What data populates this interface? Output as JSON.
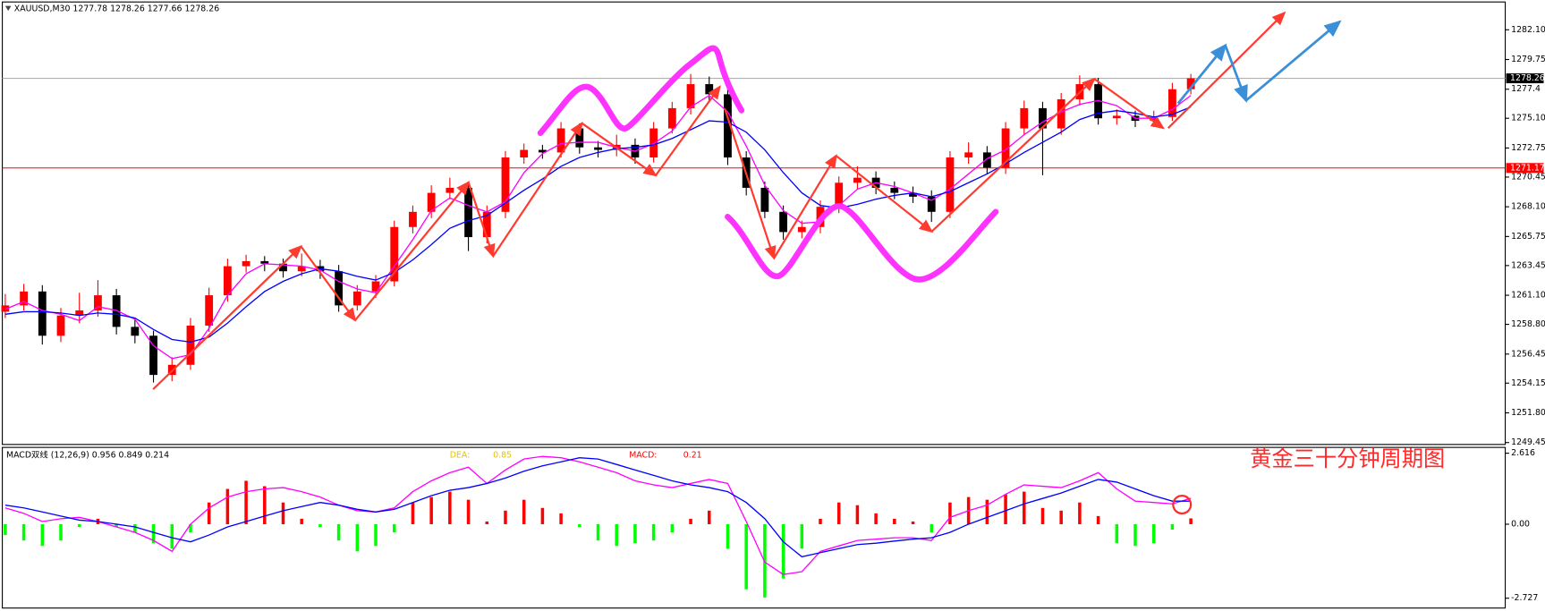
{
  "chart_data": [
    {
      "type": "candlestick",
      "title": "XAUUSD,M30  1277.78 1278.26 1277.66 1278.26",
      "up_color": "#ff0000",
      "down_color": "#000000",
      "open": [
        1259.8,
        1260.3,
        1261.4,
        1257.9,
        1259.5,
        1259.9,
        1261.1,
        1258.6,
        1257.9,
        1254.8,
        1255.6,
        1258.7,
        1261.1,
        1263.4,
        1263.8,
        1263.6,
        1263.0,
        1263.4,
        1263.0,
        1260.3,
        1261.4,
        1262.2,
        1266.5,
        1267.7,
        1269.2,
        1269.6,
        1265.7,
        1267.7,
        1272.0,
        1272.6,
        1272.4,
        1274.3,
        1272.8,
        1272.6,
        1273.0,
        1272.0,
        1274.3,
        1275.9,
        1277.8,
        1277.0,
        1272.0,
        1269.6,
        1267.7,
        1266.1,
        1266.5,
        1268.1,
        1270.0,
        1270.4,
        1269.6,
        1269.2,
        1268.9,
        1267.7,
        1272.0,
        1272.4,
        1271.2,
        1274.3,
        1275.9,
        1274.3,
        1276.6,
        1277.8,
        1275.1,
        1275.3,
        1274.9,
        1275.2,
        1277.4
      ],
      "high": [
        1261.2,
        1262.0,
        1261.9,
        1260.1,
        1261.3,
        1262.3,
        1261.6,
        1259.2,
        1258.3,
        1256.2,
        1259.3,
        1261.7,
        1264.0,
        1264.3,
        1264.2,
        1264.0,
        1264.4,
        1263.9,
        1263.5,
        1261.9,
        1262.7,
        1267.0,
        1268.2,
        1269.8,
        1270.4,
        1270.1,
        1268.2,
        1272.5,
        1273.1,
        1273.0,
        1274.8,
        1274.7,
        1273.3,
        1273.8,
        1273.5,
        1274.8,
        1276.4,
        1278.6,
        1278.4,
        1277.5,
        1272.5,
        1270.1,
        1268.2,
        1267.0,
        1268.6,
        1270.5,
        1271.3,
        1270.9,
        1270.1,
        1269.7,
        1269.4,
        1272.5,
        1273.2,
        1272.9,
        1274.8,
        1276.5,
        1276.4,
        1277.1,
        1278.5,
        1278.3,
        1275.8,
        1275.7,
        1275.7,
        1277.9,
        1278.6
      ],
      "low": [
        1259.3,
        1259.9,
        1257.2,
        1257.4,
        1258.9,
        1259.4,
        1258.0,
        1257.3,
        1254.2,
        1254.3,
        1255.2,
        1258.2,
        1260.6,
        1262.9,
        1263.0,
        1262.5,
        1262.6,
        1262.4,
        1259.8,
        1259.9,
        1260.9,
        1261.8,
        1266.0,
        1267.2,
        1268.7,
        1264.6,
        1265.2,
        1267.2,
        1271.5,
        1271.9,
        1272.0,
        1272.3,
        1272.0,
        1272.1,
        1271.5,
        1271.6,
        1273.9,
        1275.4,
        1276.5,
        1271.4,
        1269.0,
        1267.2,
        1265.5,
        1265.6,
        1266.0,
        1267.6,
        1269.5,
        1269.1,
        1268.7,
        1268.4,
        1266.9,
        1267.2,
        1271.5,
        1270.7,
        1270.7,
        1273.8,
        1270.6,
        1273.8,
        1276.1,
        1274.6,
        1274.6,
        1274.4,
        1274.4,
        1274.9,
        1277.0
      ],
      "close": [
        1260.3,
        1261.4,
        1257.9,
        1259.5,
        1259.9,
        1261.1,
        1258.6,
        1257.9,
        1254.8,
        1255.6,
        1258.7,
        1261.1,
        1263.4,
        1263.8,
        1263.6,
        1263.0,
        1263.4,
        1263.0,
        1260.3,
        1261.4,
        1262.2,
        1266.5,
        1267.7,
        1269.2,
        1269.6,
        1265.7,
        1267.7,
        1272.0,
        1272.6,
        1272.4,
        1274.3,
        1272.8,
        1272.6,
        1273.0,
        1272.0,
        1274.3,
        1275.9,
        1277.8,
        1277.0,
        1272.0,
        1269.6,
        1267.7,
        1266.1,
        1266.5,
        1268.1,
        1270.0,
        1270.4,
        1269.6,
        1269.2,
        1268.9,
        1267.7,
        1272.0,
        1272.4,
        1271.2,
        1274.3,
        1275.9,
        1274.3,
        1276.6,
        1277.8,
        1275.1,
        1275.3,
        1274.9,
        1275.2,
        1277.4,
        1278.26
      ],
      "lines": [
        {
          "color": "#ff00ff",
          "values": [
            1260.0,
            1260.6,
            1259.9,
            1259.6,
            1259.1,
            1260.2,
            1259.9,
            1259.2,
            1257.1,
            1256.1,
            1256.4,
            1258.5,
            1261.1,
            1262.8,
            1263.6,
            1263.5,
            1263.4,
            1263.1,
            1262.2,
            1261.6,
            1261.3,
            1263.4,
            1265.5,
            1267.8,
            1268.8,
            1268.2,
            1267.7,
            1268.5,
            1270.8,
            1272.3,
            1273.1,
            1273.2,
            1273.2,
            1272.8,
            1272.5,
            1273.1,
            1274.1,
            1276.0,
            1276.9,
            1275.6,
            1272.9,
            1269.8,
            1267.8,
            1266.8,
            1266.9,
            1268.2,
            1269.5,
            1270.0,
            1269.7,
            1269.2,
            1268.6,
            1269.5,
            1270.7,
            1271.9,
            1272.6,
            1273.8,
            1274.8,
            1275.6,
            1276.2,
            1276.5,
            1276.1,
            1275.1,
            1275.1,
            1275.8,
            1276.9
          ]
        },
        {
          "color": "#0000ff",
          "values": [
            1259.6,
            1259.8,
            1259.8,
            1259.7,
            1259.5,
            1259.7,
            1259.6,
            1259.3,
            1258.4,
            1257.6,
            1257.4,
            1257.8,
            1258.9,
            1260.2,
            1261.4,
            1262.2,
            1262.8,
            1263.2,
            1263.0,
            1262.6,
            1262.3,
            1262.9,
            1263.9,
            1265.1,
            1266.4,
            1267.0,
            1267.4,
            1268.4,
            1269.4,
            1270.3,
            1271.3,
            1272.0,
            1272.4,
            1272.7,
            1272.8,
            1273.0,
            1273.5,
            1274.2,
            1274.9,
            1274.8,
            1274.0,
            1272.6,
            1270.8,
            1269.2,
            1268.2,
            1268.0,
            1268.3,
            1268.7,
            1269.0,
            1269.2,
            1268.9,
            1269.3,
            1270.0,
            1270.7,
            1271.5,
            1272.4,
            1273.2,
            1274.0,
            1275.0,
            1275.5,
            1275.7,
            1275.5,
            1275.2,
            1275.4,
            1276.0
          ]
        }
      ],
      "ylim": [
        1249.3,
        1284.3
      ],
      "yticks": [
        {
          "value": 1282.1,
          "label": "1282.10"
        },
        1279.75,
        1277.4,
        {
          "value": 1275.1,
          "label": "1275.10"
        },
        1272.75,
        1270.45,
        {
          "value": 1268.1,
          "label": "1268.10"
        },
        1265.75,
        1263.45,
        {
          "value": 1261.1,
          "label": "1261.10"
        },
        {
          "value": 1258.8,
          "label": "1258.80"
        },
        1256.45,
        1254.15,
        {
          "value": 1251.8,
          "label": "1251.80"
        },
        1249.45
      ],
      "current_price": 1278.26,
      "price_line": {
        "value": 1271.17,
        "color": "#ff0000"
      }
    },
    {
      "type": "macd",
      "title": "MACD双线 (12,26,9) 0.956 0.849 0.214",
      "dea_label": "DEA:",
      "dea_value": 0.85,
      "macd_label": "MACD:",
      "macd_value": 0.21,
      "annotation": "黄金三十分钟周期图",
      "up_color": "#ff0000",
      "down_color": "#00ff00",
      "histogram": [
        -0.4,
        -0.6,
        -0.8,
        -0.6,
        -0.1,
        0.2,
        -0.1,
        -0.3,
        -0.7,
        -0.9,
        -0.3,
        0.8,
        1.3,
        1.6,
        1.4,
        0.8,
        0.2,
        -0.1,
        -0.6,
        -1.0,
        -0.8,
        -0.3,
        0.8,
        1.0,
        1.2,
        0.9,
        0.1,
        0.5,
        0.9,
        0.6,
        0.4,
        -0.1,
        -0.6,
        -0.8,
        -0.7,
        -0.6,
        -0.3,
        0.2,
        0.5,
        -0.9,
        -2.4,
        -2.7,
        -2.0,
        -0.9,
        0.2,
        0.8,
        0.7,
        0.4,
        0.2,
        0.1,
        -0.3,
        0.8,
        1.0,
        0.9,
        1.1,
        1.2,
        0.6,
        0.5,
        0.8,
        0.3,
        -0.7,
        -0.8,
        -0.7,
        -0.2,
        0.214
      ],
      "lines": [
        {
          "color": "#ff00ff",
          "values": [
            0.6,
            0.4,
            0.1,
            0.2,
            0.25,
            0.1,
            -0.1,
            -0.3,
            -0.6,
            -1.0,
            0.0,
            0.6,
            1.0,
            1.2,
            1.3,
            1.35,
            1.2,
            1.0,
            0.7,
            0.5,
            0.45,
            0.6,
            1.2,
            1.6,
            1.9,
            2.1,
            1.5,
            2.0,
            2.4,
            2.5,
            2.45,
            2.3,
            2.1,
            1.9,
            1.6,
            1.45,
            1.35,
            1.5,
            1.65,
            1.5,
            0.1,
            -1.4,
            -1.85,
            -1.75,
            -1.0,
            -0.8,
            -0.6,
            -0.55,
            -0.5,
            -0.5,
            -0.6,
            0.25,
            0.5,
            0.7,
            1.1,
            1.45,
            1.4,
            1.35,
            1.6,
            1.9,
            1.3,
            0.85,
            0.8,
            0.75,
            0.956
          ]
        },
        {
          "color": "#0000ff",
          "values": [
            0.7,
            0.6,
            0.45,
            0.3,
            0.15,
            0.1,
            0.0,
            -0.1,
            -0.3,
            -0.5,
            -0.65,
            -0.4,
            -0.1,
            0.1,
            0.3,
            0.5,
            0.65,
            0.8,
            0.7,
            0.55,
            0.45,
            0.55,
            0.8,
            1.05,
            1.25,
            1.35,
            1.5,
            1.7,
            1.95,
            2.15,
            2.3,
            2.45,
            2.4,
            2.2,
            2.0,
            1.8,
            1.6,
            1.45,
            1.35,
            1.2,
            0.8,
            0.2,
            -0.65,
            -1.2,
            -1.05,
            -0.9,
            -0.75,
            -0.7,
            -0.62,
            -0.55,
            -0.5,
            -0.3,
            0.0,
            0.25,
            0.5,
            0.75,
            0.95,
            1.15,
            1.4,
            1.65,
            1.55,
            1.3,
            1.05,
            0.85,
            0.849
          ]
        }
      ],
      "ylim": [
        -3.09,
        2.83
      ],
      "yticks": [
        2.616,
        {
          "value": 0,
          "label": "0.00"
        },
        -2.727
      ]
    }
  ]
}
